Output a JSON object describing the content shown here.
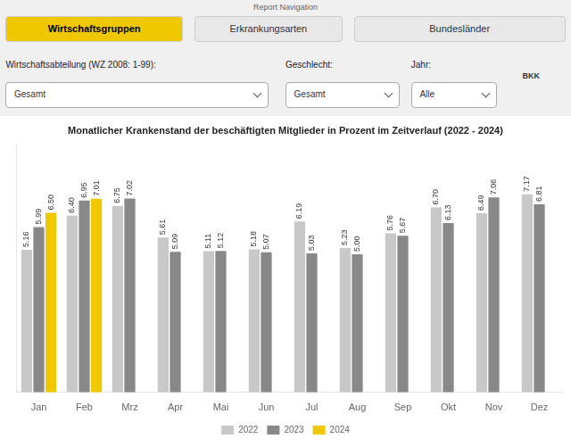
{
  "chart_data": {
    "type": "bar",
    "title": "Monatlicher Krankenstand der beschäftigten Mitglieder in Prozent im Zeitverlauf (2022 - 2024)",
    "annotations": [
      "Report Navigation",
      "Wirtschaftsgruppen",
      "Erkrankungsarten",
      "Bundesländer",
      "Wirtschaftsabteilung (WZ 2008: 1-99):",
      "Geschlecht:",
      "Jahr:",
      "Gesamt",
      "Gesamt",
      "Alle",
      "BKK"
    ],
    "categories": [
      "Jan",
      "Feb",
      "Mrz",
      "Apr",
      "Mai",
      "Jun",
      "Jul",
      "Aug",
      "Sep",
      "Okt",
      "Nov",
      "Dez"
    ],
    "series": [
      {
        "name": "2022",
        "color": "#c8c8c8",
        "values": [
          5.16,
          6.4,
          6.75,
          5.61,
          5.11,
          5.18,
          6.19,
          5.23,
          5.76,
          6.7,
          6.49,
          7.17
        ],
        "value_labels": [
          "5.16",
          "6.40",
          "6.75",
          "5.61",
          "5.11",
          "5.18",
          "6.19",
          "5.23",
          "5.76",
          "6.70",
          "6.49",
          "7.17"
        ]
      },
      {
        "name": "2023",
        "color": "#888888",
        "values": [
          5.99,
          6.95,
          7.02,
          5.09,
          5.12,
          5.07,
          5.03,
          5.0,
          5.67,
          6.13,
          7.06,
          6.81
        ],
        "value_labels": [
          "5.99",
          "6.95",
          "7.02",
          "5.09",
          "5.12",
          "5.07",
          "5.03",
          "5.00",
          "5.67",
          "6.13",
          "7.06",
          "6.81"
        ]
      },
      {
        "name": "2024",
        "color": "#f0c800",
        "values": [
          6.5,
          7.01,
          null,
          null,
          null,
          null,
          null,
          null,
          null,
          null,
          null,
          null
        ],
        "value_labels": [
          "6.50",
          "7.01",
          null,
          null,
          null,
          null,
          null,
          null,
          null,
          null,
          null,
          null
        ]
      }
    ],
    "ylim": [
      0,
      9
    ],
    "yticks": [],
    "grid": false,
    "legend": "bottom",
    "data_labels": true,
    "tick_labels": "x"
  }
}
